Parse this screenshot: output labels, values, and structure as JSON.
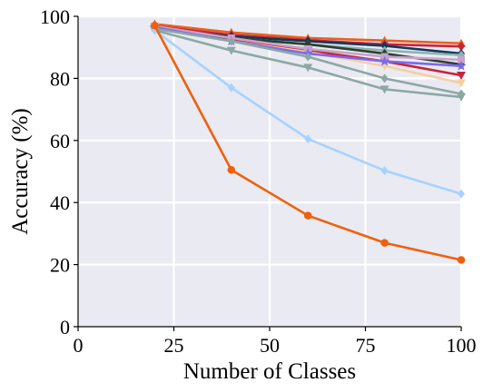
{
  "chart_data": {
    "type": "line",
    "title": "",
    "xlabel": "Number of Classes",
    "ylabel": "Accuracy (%)",
    "xlim": [
      0,
      100
    ],
    "ylim": [
      0,
      100
    ],
    "xticks": [
      "0",
      "25",
      "50",
      "75",
      "100"
    ],
    "yticks": [
      "0",
      "20",
      "40",
      "60",
      "80",
      "100"
    ],
    "grid": true,
    "background_color": "#EAEAF2",
    "x": [
      20,
      40,
      60,
      80,
      100
    ],
    "series": [
      {
        "color": "#E8601C",
        "marker": "triangle-up",
        "values": [
          97.5,
          94.8,
          93.0,
          92.2,
          91.3
        ]
      },
      {
        "color": "#C7243A",
        "marker": "diamond",
        "values": [
          96.8,
          94.0,
          92.3,
          91.0,
          90.3
        ]
      },
      {
        "color": "#0C3B5E",
        "marker": "diamond",
        "values": [
          96.0,
          93.5,
          92.0,
          90.5,
          88.0
        ]
      },
      {
        "color": "#8FB0B0",
        "marker": "diamond",
        "values": [
          96.5,
          93.0,
          91.0,
          89.0,
          87.5
        ]
      },
      {
        "color": "#C7243A",
        "marker": "triangle-down",
        "values": [
          96.5,
          92.5,
          89.0,
          85.5,
          81.0
        ]
      },
      {
        "color": "#F5CFA0",
        "marker": "triangle-down",
        "values": [
          96.5,
          92.0,
          88.5,
          84.0,
          78.5
        ]
      },
      {
        "color": "#2C3E2C",
        "marker": "diamond",
        "values": [
          96.0,
          93.0,
          91.0,
          88.0,
          84.5
        ]
      },
      {
        "color": "#C8A2C8",
        "marker": "square",
        "values": [
          96.8,
          93.0,
          89.5,
          87.0,
          86.0
        ]
      },
      {
        "color": "#7B68EE",
        "marker": "star",
        "values": [
          96.5,
          92.0,
          88.0,
          85.5,
          84.0
        ]
      },
      {
        "color": "#8CA8A4",
        "marker": "diamond",
        "values": [
          96.0,
          92.0,
          87.0,
          80.0,
          75.0
        ]
      },
      {
        "color": "#8CA8A4",
        "marker": "triangle-down",
        "values": [
          95.5,
          89.0,
          83.5,
          76.5,
          74.0
        ]
      },
      {
        "color": "#A6D2FF",
        "marker": "diamond",
        "values": [
          95.5,
          77.0,
          60.5,
          50.3,
          42.8
        ]
      },
      {
        "color": "#F0600A",
        "marker": "circle",
        "values": [
          97.0,
          50.5,
          35.8,
          27.0,
          21.5
        ]
      }
    ]
  }
}
